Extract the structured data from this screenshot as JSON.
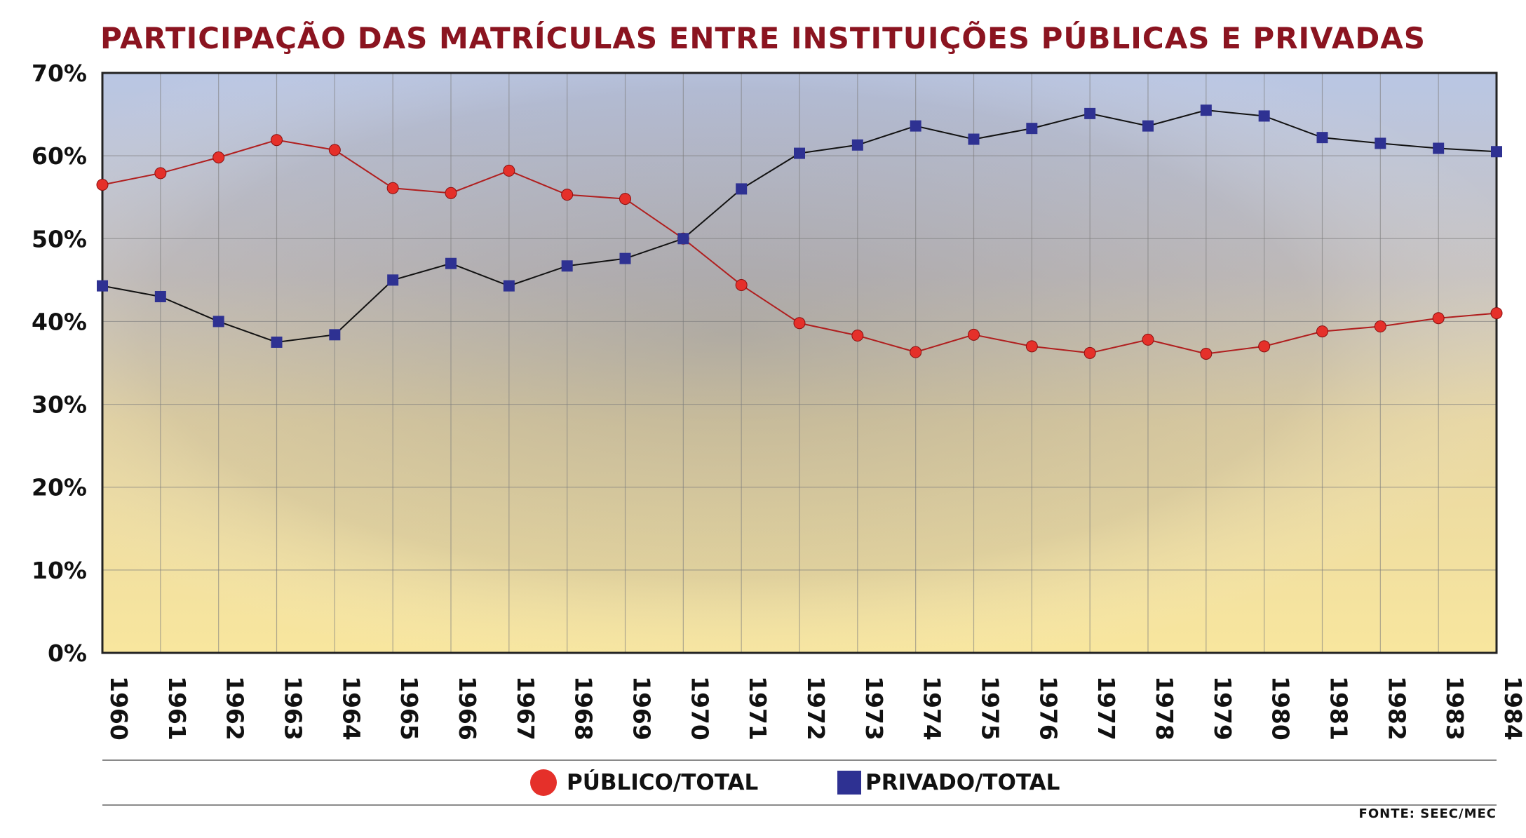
{
  "chart_data": {
    "type": "line",
    "title": "PARTICIPAÇÃO DAS MATRÍCULAS ENTRE INSTITUIÇÕES PÚBLICAS E PRIVADAS",
    "x": [
      "1960",
      "1961",
      "1962",
      "1963",
      "1964",
      "1965",
      "1966",
      "1967",
      "1968",
      "1969",
      "1970",
      "1971",
      "1972",
      "1973",
      "1974",
      "1975",
      "1976",
      "1977",
      "1978",
      "1979",
      "1980",
      "1981",
      "1982",
      "1983",
      "1984"
    ],
    "y_ticks": [
      "0%",
      "10%",
      "20%",
      "30%",
      "40%",
      "50%",
      "60%",
      "70%"
    ],
    "ylim": [
      0,
      70
    ],
    "grid": true,
    "legend_position": "bottom",
    "series": [
      {
        "name": "PÚBLICO/TOTAL",
        "marker": "circle",
        "marker_color": "#e5302a",
        "line_color": "#b01e1e",
        "values": [
          56.5,
          57.9,
          59.8,
          61.9,
          60.7,
          56.1,
          55.5,
          58.2,
          55.3,
          54.8,
          50.0,
          44.4,
          39.8,
          38.3,
          36.3,
          38.4,
          37.0,
          36.2,
          37.8,
          36.1,
          37.0,
          38.8,
          39.4,
          40.4,
          41.0
        ]
      },
      {
        "name": "PRIVADO/TOTAL",
        "marker": "square",
        "marker_color": "#2e3192",
        "line_color": "#111111",
        "values": [
          44.3,
          43.0,
          40.0,
          37.5,
          38.4,
          45.0,
          47.0,
          44.3,
          46.7,
          47.6,
          50.0,
          56.0,
          60.3,
          61.3,
          63.6,
          62.0,
          63.3,
          65.1,
          63.6,
          65.5,
          64.8,
          62.2,
          61.5,
          60.9,
          60.5
        ]
      }
    ]
  },
  "legend": {
    "public_label": "PÚBLICO/TOTAL",
    "private_label": "PRIVADO/TOTAL"
  },
  "source": "FONTE: SEEC/MEC",
  "colors": {
    "title": "#8b1420",
    "public": "#e5302a",
    "private": "#2e3192",
    "bg_top": "#b9c6e4",
    "bg_bottom": "#f6e39a"
  }
}
